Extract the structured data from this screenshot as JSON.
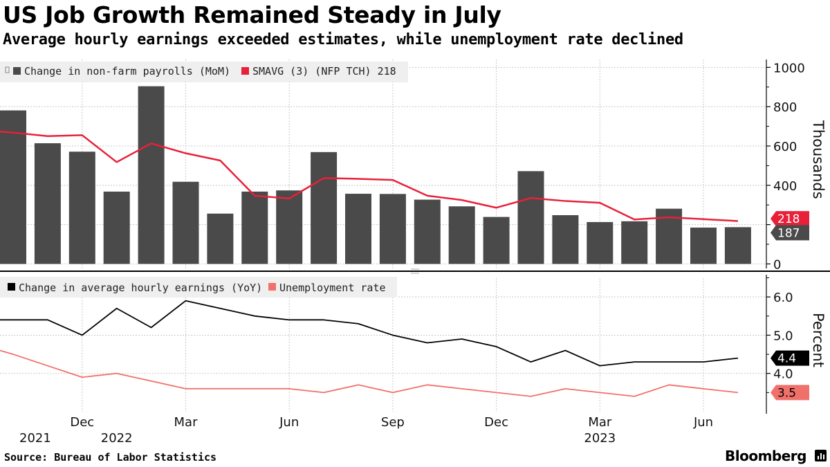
{
  "header": {
    "title": "US Job Growth Remained Steady in July",
    "subtitle": "Average hourly earnings exceeded estimates, while unemployment rate declined"
  },
  "footer": {
    "source": "Source: Bureau of Labor Statistics",
    "brand": "Bloomberg"
  },
  "colors": {
    "payrolls": "#4a4a4a",
    "smavg": "#e8203a",
    "earnings": "#000000",
    "unemployment": "#f0706a",
    "gridline": "#c8c8c8",
    "legend_bg": "#efefef"
  },
  "chart_data": [
    {
      "type": "bar",
      "panel": "top",
      "categories": [
        "2021-10",
        "2021-11",
        "2021-12",
        "2022-01",
        "2022-02",
        "2022-03",
        "2022-04",
        "2022-05",
        "2022-06",
        "2022-07",
        "2022-08",
        "2022-09",
        "2022-10",
        "2022-11",
        "2022-12",
        "2023-01",
        "2023-02",
        "2023-03",
        "2023-04",
        "2023-05",
        "2023-06",
        "2023-07"
      ],
      "series": [
        {
          "name": "Change in non-farm payrolls (MoM)",
          "type": "bar",
          "values": [
            781,
            614,
            571,
            368,
            904,
            418,
            256,
            368,
            374,
            569,
            357,
            356,
            327,
            293,
            239,
            472,
            248,
            213,
            217,
            281,
            185,
            187
          ]
        },
        {
          "name": "SMAVG (3) (NFP TCH) 218",
          "type": "line",
          "values": [
            668,
            650,
            655,
            518,
            613,
            563,
            526,
            347,
            333,
            437,
            433,
            427,
            347,
            325,
            286,
            335,
            320,
            311,
            226,
            237,
            228,
            218
          ]
        }
      ],
      "ylabel": "Thousands",
      "ylim": [
        -30,
        1040
      ],
      "yticks": [
        "0",
        "200",
        "400",
        "600",
        "800",
        "1000"
      ],
      "last_value_flags": [
        "218",
        "187"
      ],
      "legend": [
        "Change in non-farm payrolls (MoM)",
        "SMAVG (3) (NFP TCH) 218"
      ],
      "grid": true,
      "legend_position": "top-left"
    },
    {
      "type": "line",
      "panel": "bottom",
      "categories": [
        "2021-10",
        "2021-11",
        "2021-12",
        "2022-01",
        "2022-02",
        "2022-03",
        "2022-04",
        "2022-05",
        "2022-06",
        "2022-07",
        "2022-08",
        "2022-09",
        "2022-10",
        "2022-11",
        "2022-12",
        "2023-01",
        "2023-02",
        "2023-03",
        "2023-04",
        "2023-05",
        "2023-06",
        "2023-07"
      ],
      "series": [
        {
          "name": "Change in average hourly earnings (YoY)",
          "values": [
            5.4,
            5.4,
            5.0,
            5.7,
            5.2,
            5.9,
            5.7,
            5.5,
            5.4,
            5.4,
            5.3,
            5.0,
            4.8,
            4.9,
            4.7,
            4.3,
            4.6,
            4.2,
            4.3,
            4.3,
            4.3,
            4.4
          ]
        },
        {
          "name": "Unemployment rate",
          "values": [
            4.5,
            4.2,
            3.9,
            4.0,
            3.8,
            3.6,
            3.6,
            3.6,
            3.6,
            3.5,
            3.7,
            3.5,
            3.7,
            3.6,
            3.5,
            3.4,
            3.6,
            3.5,
            3.4,
            3.7,
            3.6,
            3.5
          ]
        }
      ],
      "ylabel": "Percent",
      "ylim": [
        3.0,
        6.6
      ],
      "yticks": [
        "4.0",
        "5.0",
        "6.0"
      ],
      "last_value_flags": [
        "4.4",
        "3.5"
      ],
      "legend": [
        "Change in average hourly earnings (YoY)",
        "Unemployment rate"
      ],
      "grid": true,
      "legend_position": "top-left"
    }
  ],
  "x_axis": {
    "month_labels": [
      {
        "label": "Dec",
        "category": "2021-12"
      },
      {
        "label": "Mar",
        "category": "2022-03"
      },
      {
        "label": "Jun",
        "category": "2022-06"
      },
      {
        "label": "Sep",
        "category": "2022-09"
      },
      {
        "label": "Dec",
        "category": "2022-12"
      },
      {
        "label": "Mar",
        "category": "2023-03"
      },
      {
        "label": "Jun",
        "category": "2023-06"
      }
    ],
    "year_labels": [
      {
        "label": "2021",
        "category": "2021-10"
      },
      {
        "label": "2022",
        "category": "2022-01"
      },
      {
        "label": "2023",
        "category": "2023-03"
      }
    ]
  }
}
